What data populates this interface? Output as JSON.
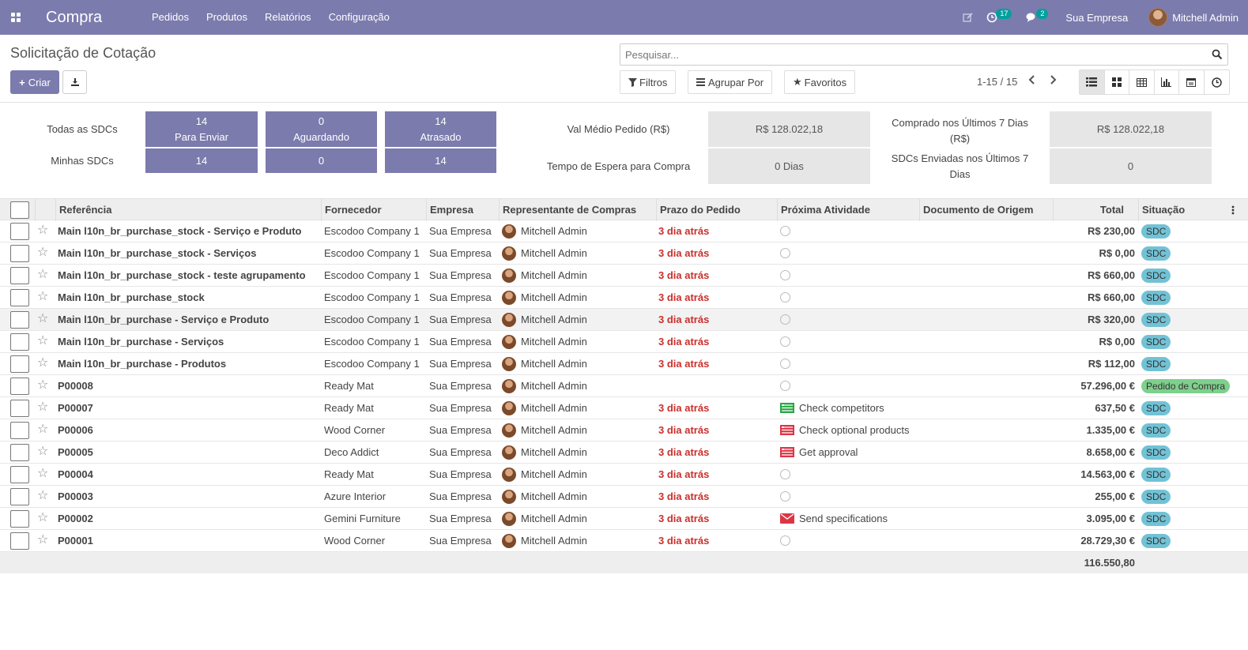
{
  "navbar": {
    "app_name": "Compra",
    "menu": [
      "Pedidos",
      "Produtos",
      "Relatórios",
      "Configuração"
    ],
    "activity_count": "17",
    "messages_count": "2",
    "company": "Sua Empresa",
    "user": "Mitchell Admin"
  },
  "control_panel": {
    "title": "Solicitação de Cotação",
    "create_label": "Criar",
    "search_placeholder": "Pesquisar...",
    "filters_label": "Filtros",
    "group_by_label": "Agrupar Por",
    "favorites_label": "Favoritos",
    "pager": "1-15 / 15"
  },
  "dashboard": {
    "all_rfqs_label": "Todas as SDCs",
    "my_rfqs_label": "Minhas SDCs",
    "tiles_all": [
      {
        "value": "14",
        "label": "Para Enviar"
      },
      {
        "value": "0",
        "label": "Aguardando"
      },
      {
        "value": "14",
        "label": "Atrasado"
      }
    ],
    "tiles_my": [
      "14",
      "0",
      "14"
    ],
    "avg_order_label": "Val Médio Pedido (R$)",
    "avg_order_value": "R$ 128.022,18",
    "lead_time_label": "Tempo de Espera para Compra",
    "lead_time_value": "0  Dias",
    "purchased_7_label_1": "Comprado nos Últimos 7 Dias",
    "purchased_7_label_2": "(R$)",
    "purchased_7_value": "R$ 128.022,18",
    "sent_7_label_1": "SDCs Enviadas nos Últimos 7",
    "sent_7_label_2": "Dias",
    "sent_7_value": "0"
  },
  "table": {
    "headers": {
      "reference": "Referência",
      "vendor": "Fornecedor",
      "company": "Empresa",
      "rep": "Representante de Compras",
      "deadline": "Prazo do Pedido",
      "activity": "Próxima Atividade",
      "origin": "Documento de Origem",
      "total": "Total",
      "status": "Situação"
    },
    "rows": [
      {
        "ref": "Main l10n_br_purchase_stock - Serviço e Produto",
        "vendor": "Escodoo Company 1",
        "company": "Sua Empresa",
        "rep": "Mitchell Admin",
        "deadline": "3 dia atrás",
        "activity": "",
        "activity_icon": "clock-icon",
        "total": "R$ 230,00",
        "status": "SDC"
      },
      {
        "ref": "Main l10n_br_purchase_stock - Serviços",
        "vendor": "Escodoo Company 1",
        "company": "Sua Empresa",
        "rep": "Mitchell Admin",
        "deadline": "3 dia atrás",
        "activity": "",
        "activity_icon": "clock-icon",
        "total": "R$ 0,00",
        "status": "SDC"
      },
      {
        "ref": "Main l10n_br_purchase_stock - teste agrupamento",
        "vendor": "Escodoo Company 1",
        "company": "Sua Empresa",
        "rep": "Mitchell Admin",
        "deadline": "3 dia atrás",
        "activity": "",
        "activity_icon": "clock-icon",
        "total": "R$ 660,00",
        "status": "SDC"
      },
      {
        "ref": "Main l10n_br_purchase_stock",
        "vendor": "Escodoo Company 1",
        "company": "Sua Empresa",
        "rep": "Mitchell Admin",
        "deadline": "3 dia atrás",
        "activity": "",
        "activity_icon": "clock-icon",
        "total": "R$ 660,00",
        "status": "SDC"
      },
      {
        "ref": "Main l10n_br_purchase - Serviço e Produto",
        "vendor": "Escodoo Company 1",
        "company": "Sua Empresa",
        "rep": "Mitchell Admin",
        "deadline": "3 dia atrás",
        "activity": "",
        "activity_icon": "clock-icon",
        "total": "R$ 320,00",
        "status": "SDC"
      },
      {
        "ref": "Main l10n_br_purchase - Serviços",
        "vendor": "Escodoo Company 1",
        "company": "Sua Empresa",
        "rep": "Mitchell Admin",
        "deadline": "3 dia atrás",
        "activity": "",
        "activity_icon": "clock-icon",
        "total": "R$ 0,00",
        "status": "SDC"
      },
      {
        "ref": "Main l10n_br_purchase - Produtos",
        "vendor": "Escodoo Company 1",
        "company": "Sua Empresa",
        "rep": "Mitchell Admin",
        "deadline": "3 dia atrás",
        "activity": "",
        "activity_icon": "clock-icon",
        "total": "R$ 112,00",
        "status": "SDC"
      },
      {
        "ref": "P00008",
        "vendor": "Ready Mat",
        "company": "Sua Empresa",
        "rep": "Mitchell Admin",
        "deadline": "",
        "activity": "",
        "activity_icon": "clock-icon",
        "total": "57.296,00 €",
        "status": "Pedido de Compra"
      },
      {
        "ref": "P00007",
        "vendor": "Ready Mat",
        "company": "Sua Empresa",
        "rep": "Mitchell Admin",
        "deadline": "3 dia atrás",
        "activity": "Check competitors",
        "activity_icon": "tasks-green-icon",
        "total": "637,50 €",
        "status": "SDC"
      },
      {
        "ref": "P00006",
        "vendor": "Wood Corner",
        "company": "Sua Empresa",
        "rep": "Mitchell Admin",
        "deadline": "3 dia atrás",
        "activity": "Check optional products",
        "activity_icon": "tasks-red-icon",
        "total": "1.335,00 €",
        "status": "SDC"
      },
      {
        "ref": "P00005",
        "vendor": "Deco Addict",
        "company": "Sua Empresa",
        "rep": "Mitchell Admin",
        "deadline": "3 dia atrás",
        "activity": "Get approval",
        "activity_icon": "tasks-red-icon",
        "total": "8.658,00 €",
        "status": "SDC"
      },
      {
        "ref": "P00004",
        "vendor": "Ready Mat",
        "company": "Sua Empresa",
        "rep": "Mitchell Admin",
        "deadline": "3 dia atrás",
        "activity": "",
        "activity_icon": "clock-icon",
        "total": "14.563,00 €",
        "status": "SDC"
      },
      {
        "ref": "P00003",
        "vendor": "Azure Interior",
        "company": "Sua Empresa",
        "rep": "Mitchell Admin",
        "deadline": "3 dia atrás",
        "activity": "",
        "activity_icon": "clock-icon",
        "total": "255,00 €",
        "status": "SDC"
      },
      {
        "ref": "P00002",
        "vendor": "Gemini Furniture",
        "company": "Sua Empresa",
        "rep": "Mitchell Admin",
        "deadline": "3 dia atrás",
        "activity": "Send specifications",
        "activity_icon": "envelope-red-icon",
        "total": "3.095,00 €",
        "status": "SDC"
      },
      {
        "ref": "P00001",
        "vendor": "Wood Corner",
        "company": "Sua Empresa",
        "rep": "Mitchell Admin",
        "deadline": "3 dia atrás",
        "activity": "",
        "activity_icon": "clock-icon",
        "total": "28.729,30 €",
        "status": "SDC"
      }
    ],
    "grand_total": "116.550,80"
  },
  "colors": {
    "brand": "#7c7bad",
    "late": "#c9302c",
    "status_rfq": "#72c2d5",
    "status_po": "#7fcf8d"
  }
}
